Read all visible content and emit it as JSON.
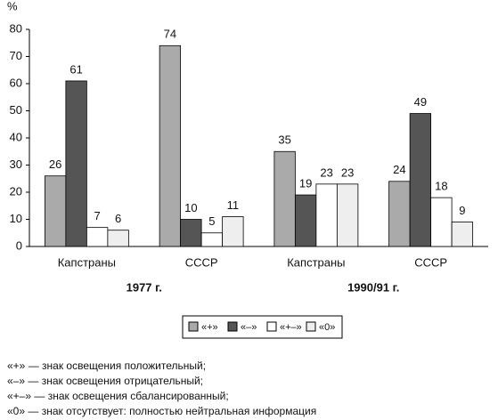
{
  "chart_data": {
    "type": "bar",
    "y_label": "%",
    "categories": [
      "Капстраны",
      "СССР",
      "Капстраны",
      "СССР"
    ],
    "periods": [
      "1977 г.",
      "1990/91 г."
    ],
    "series": [
      {
        "name": "«+»",
        "color": "#aaaaaa",
        "values": [
          26,
          74,
          35,
          24
        ]
      },
      {
        "name": "«–»",
        "color": "#555555",
        "values": [
          61,
          10,
          19,
          49
        ]
      },
      {
        "name": "«+–»",
        "color": "#ffffff",
        "values": [
          7,
          5,
          23,
          18
        ]
      },
      {
        "name": "«0»",
        "color": "#eeeeee",
        "values": [
          6,
          11,
          23,
          9
        ]
      }
    ],
    "ylim": [
      0,
      80
    ],
    "yticks": [
      0,
      10,
      20,
      30,
      40,
      50,
      60,
      70,
      80
    ],
    "notes": [
      "«+» — знак освещения положительный;",
      "«–» — знак освещения отрицательный;",
      "«+–» — знак освещения сбалансированный;",
      "«0» — знак отсутствует: полностью нейтральная информация"
    ]
  }
}
